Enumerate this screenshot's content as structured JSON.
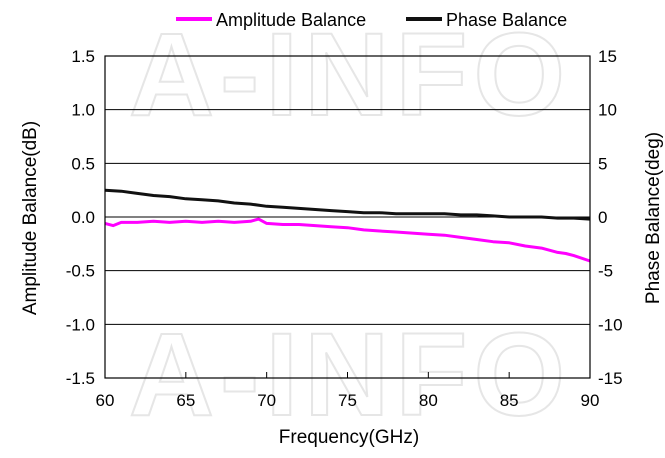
{
  "chart_data": {
    "type": "line",
    "title": "",
    "xlabel": "Frequency(GHz)",
    "ylabel": "Amplitude Balance(dB)",
    "y2label": "Phase Balance(deg)",
    "xlim": [
      60,
      90
    ],
    "ylim": [
      -1.5,
      1.5
    ],
    "y2lim": [
      -15,
      15
    ],
    "xticks": [
      "60",
      "65",
      "70",
      "75",
      "80",
      "85",
      "90"
    ],
    "yticks": [
      "1.5",
      "1.0",
      "0.5",
      "0.0",
      "-0.5",
      "-1.0",
      "-1.5"
    ],
    "y2ticks": [
      "15",
      "10",
      "5",
      "0",
      "-5",
      "-10",
      "-15"
    ],
    "grid": "horizontal",
    "legend_position": "top",
    "watermark": "A-INFO",
    "series": [
      {
        "name": "Amplitude Balance",
        "axis": "left",
        "color": "#ff00ff",
        "x": [
          60,
          60.5,
          61,
          62,
          63,
          64,
          65,
          66,
          67,
          68,
          69,
          69.5,
          70,
          71,
          72,
          73,
          74,
          75,
          76,
          77,
          78,
          79,
          80,
          81,
          82,
          83,
          84,
          85,
          86,
          87,
          88,
          88.5,
          89,
          90
        ],
        "y": [
          -0.06,
          -0.08,
          -0.05,
          -0.05,
          -0.04,
          -0.05,
          -0.04,
          -0.05,
          -0.04,
          -0.05,
          -0.04,
          -0.02,
          -0.06,
          -0.07,
          -0.07,
          -0.08,
          -0.09,
          -0.1,
          -0.12,
          -0.13,
          -0.14,
          -0.15,
          -0.16,
          -0.17,
          -0.19,
          -0.21,
          -0.23,
          -0.24,
          -0.27,
          -0.29,
          -0.33,
          -0.34,
          -0.36,
          -0.41
        ]
      },
      {
        "name": "Phase Balance",
        "axis": "right",
        "color": "#111111",
        "x": [
          60,
          61,
          62,
          63,
          64,
          65,
          66,
          67,
          68,
          69,
          70,
          71,
          72,
          73,
          74,
          75,
          76,
          77,
          78,
          79,
          80,
          81,
          82,
          83,
          84,
          85,
          86,
          87,
          88,
          89,
          90
        ],
        "y": [
          2.5,
          2.4,
          2.2,
          2.0,
          1.9,
          1.7,
          1.6,
          1.5,
          1.3,
          1.2,
          1.0,
          0.9,
          0.8,
          0.7,
          0.6,
          0.5,
          0.4,
          0.4,
          0.3,
          0.3,
          0.3,
          0.3,
          0.2,
          0.2,
          0.1,
          0.0,
          0.0,
          0.0,
          -0.1,
          -0.1,
          -0.2
        ]
      }
    ]
  }
}
